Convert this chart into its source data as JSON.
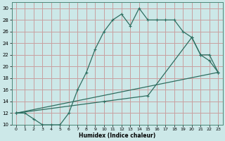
{
  "title": "",
  "xlabel": "Humidex (Indice chaleur)",
  "bg_color": "#cce8e8",
  "grid_color": "#c8a0a0",
  "line_color": "#2e6e60",
  "xlim": [
    -0.5,
    23.5
  ],
  "ylim": [
    10,
    31
  ],
  "xticks": [
    0,
    1,
    2,
    3,
    4,
    5,
    6,
    7,
    8,
    9,
    10,
    11,
    12,
    13,
    14,
    15,
    16,
    17,
    18,
    19,
    20,
    21,
    22,
    23
  ],
  "yticks": [
    10,
    12,
    14,
    16,
    18,
    20,
    22,
    24,
    26,
    28,
    30
  ],
  "line1_x": [
    0,
    1,
    2,
    3,
    4,
    5,
    6,
    7,
    8,
    9,
    10,
    11,
    12,
    13,
    14,
    15,
    16,
    17,
    18,
    19,
    20,
    21,
    22,
    23
  ],
  "line1_y": [
    12,
    12,
    11,
    10,
    10,
    10,
    12,
    16,
    19,
    23,
    26,
    28,
    29,
    27,
    30,
    28,
    28,
    28,
    28,
    26,
    25,
    22,
    21,
    19
  ],
  "line2_x": [
    0,
    23
  ],
  "line2_y": [
    12,
    19
  ],
  "line3_x": [
    0,
    10,
    15,
    20,
    21,
    22,
    23
  ],
  "line3_y": [
    12,
    14,
    15,
    25,
    22,
    22,
    19
  ]
}
